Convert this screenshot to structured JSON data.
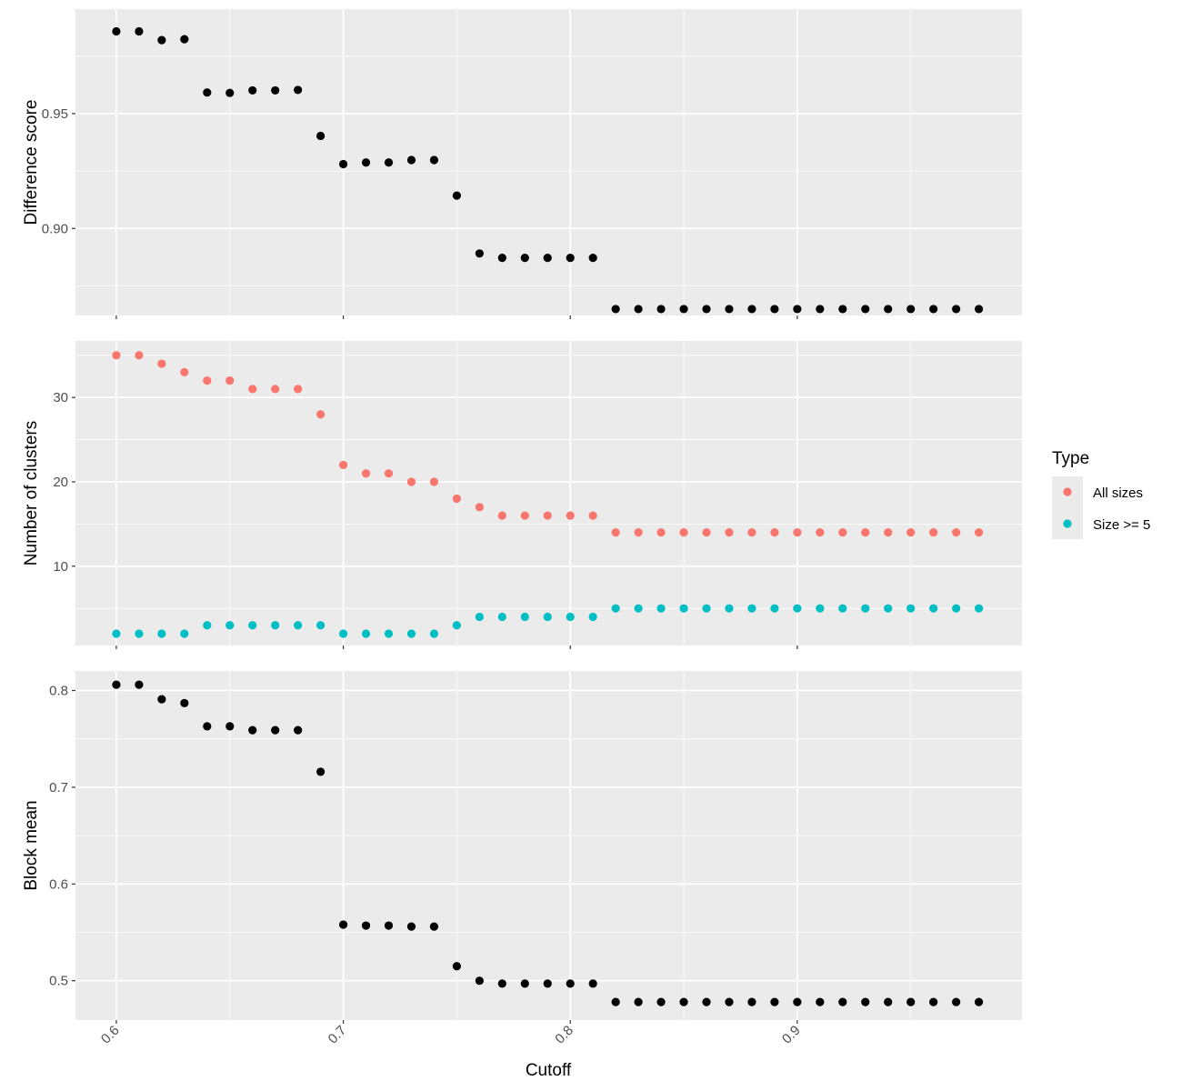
{
  "chart_data": {
    "type": "scatter",
    "x_label": "Cutoff",
    "x_range": [
      0.582,
      0.999
    ],
    "x_ticks": [
      0.6,
      0.7,
      0.8,
      0.9
    ],
    "x_tick_labels": [
      "0.6",
      "0.7",
      "0.8",
      "0.9"
    ],
    "x": [
      0.6,
      0.61,
      0.62,
      0.63,
      0.64,
      0.65,
      0.66,
      0.67,
      0.68,
      0.69,
      0.7,
      0.71,
      0.72,
      0.73,
      0.74,
      0.75,
      0.76,
      0.77,
      0.78,
      0.79,
      0.8,
      0.81,
      0.82,
      0.83,
      0.84,
      0.85,
      0.86,
      0.87,
      0.88,
      0.89,
      0.9,
      0.91,
      0.92,
      0.93,
      0.94,
      0.95,
      0.96,
      0.97,
      0.98
    ],
    "grid": true,
    "legend_position": "right",
    "legend": {
      "title": "Type",
      "entries": [
        {
          "label": "All sizes",
          "color": "#F8766D"
        },
        {
          "label": "Size >= 5",
          "color": "#00BFC4"
        }
      ]
    },
    "panels": [
      {
        "y_label": "Difference score",
        "y_range": [
          0.8621,
          0.9955
        ],
        "y_ticks": [
          0.9,
          0.95
        ],
        "y_tick_labels": [
          "0.90",
          "0.95"
        ],
        "y_minor": [
          0.875,
          0.925,
          0.975
        ],
        "series": [
          {
            "color": "#000000",
            "values": [
              0.9858,
              0.9858,
              0.982,
              0.9824,
              0.9592,
              0.959,
              0.9601,
              0.9601,
              0.9603,
              0.9403,
              0.928,
              0.9287,
              0.9287,
              0.9298,
              0.9298,
              0.9143,
              0.8891,
              0.8872,
              0.8872,
              0.8872,
              0.8872,
              0.8872,
              0.8649,
              0.8649,
              0.8649,
              0.8649,
              0.8649,
              0.8649,
              0.8649,
              0.8649,
              0.8649,
              0.8649,
              0.8649,
              0.8649,
              0.8649,
              0.8649,
              0.8649,
              0.8649,
              0.8649
            ]
          }
        ]
      },
      {
        "y_label": "Number of clusters",
        "y_range": [
          0.6,
          36.7
        ],
        "y_ticks": [
          10,
          20,
          30
        ],
        "y_tick_labels": [
          "10",
          "20",
          "30"
        ],
        "y_minor": [
          5,
          15,
          25,
          35
        ],
        "series": [
          {
            "name": "All sizes",
            "color": "#F8766D",
            "values": [
              35,
              35,
              34,
              33,
              32,
              32,
              31,
              31,
              31,
              28,
              22,
              21,
              21,
              20,
              20,
              18,
              17,
              16,
              16,
              16,
              16,
              16,
              14,
              14,
              14,
              14,
              14,
              14,
              14,
              14,
              14,
              14,
              14,
              14,
              14,
              14,
              14,
              14,
              14
            ]
          },
          {
            "name": "Size >= 5",
            "color": "#00BFC4",
            "values": [
              2,
              2,
              2,
              2,
              3,
              3,
              3,
              3,
              3,
              3,
              2,
              2,
              2,
              2,
              2,
              3,
              4,
              4,
              4,
              4,
              4,
              4,
              5,
              5,
              5,
              5,
              5,
              5,
              5,
              5,
              5,
              5,
              5,
              5,
              5,
              5,
              5,
              5,
              5
            ]
          }
        ]
      },
      {
        "y_label": "Block mean",
        "y_range": [
          0.4593,
          0.8202
        ],
        "y_ticks": [
          0.5,
          0.6,
          0.7,
          0.8
        ],
        "y_tick_labels": [
          "0.5",
          "0.6",
          "0.7",
          "0.8"
        ],
        "y_minor": [
          0.55,
          0.65,
          0.75
        ],
        "series": [
          {
            "color": "#000000",
            "values": [
              0.806,
              0.806,
              0.791,
              0.787,
              0.763,
              0.763,
              0.759,
              0.759,
              0.759,
              0.716,
              0.558,
              0.557,
              0.557,
              0.556,
              0.556,
              0.515,
              0.5,
              0.497,
              0.497,
              0.497,
              0.497,
              0.497,
              0.478,
              0.478,
              0.478,
              0.478,
              0.478,
              0.478,
              0.478,
              0.478,
              0.478,
              0.478,
              0.478,
              0.478,
              0.478,
              0.478,
              0.478,
              0.478,
              0.478
            ]
          }
        ]
      }
    ]
  }
}
